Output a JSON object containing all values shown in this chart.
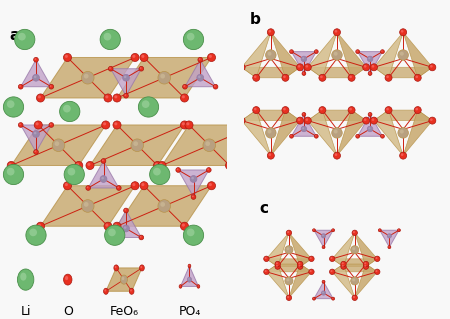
{
  "bg_color": "#f8f8f8",
  "li_color": "#6db870",
  "li_edge": "#4a8f4a",
  "li_hi": "#a8d8a8",
  "o_color": "#e83020",
  "o_edge": "#aa1810",
  "feo_face": "#c8a96e",
  "feo_edge": "#b8934a",
  "feo_center": "#b8a080",
  "feo_light": "#d4bc8a",
  "po4_face": "#c0a0c8",
  "po4_edge": "#9878a8",
  "po4_center": "#9888a8",
  "po4_light": "#d0b8d8",
  "bond_color": "#cc2010",
  "label_fontsize": 11,
  "legend_fontsize": 9,
  "label_a": "a",
  "label_b": "b",
  "label_c": "c",
  "legend_labels": [
    "Li",
    "O",
    "FeO₆",
    "PO₄"
  ]
}
